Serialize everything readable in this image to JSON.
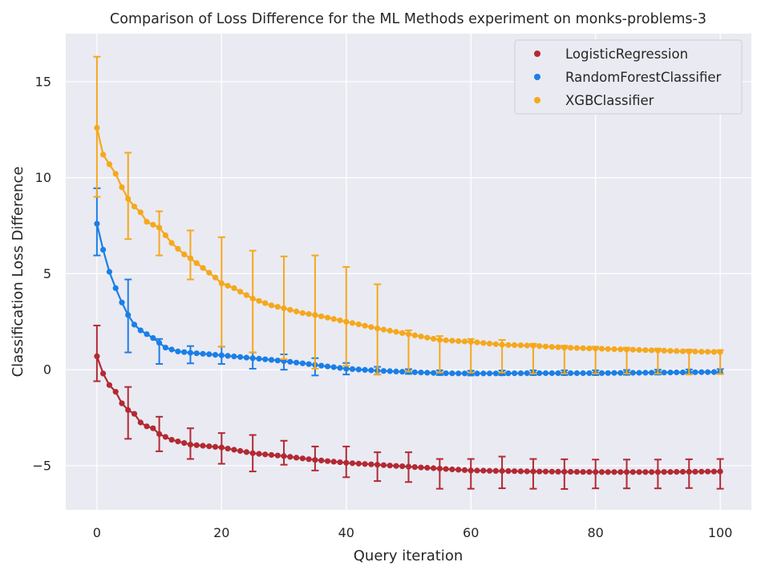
{
  "chart_data": {
    "type": "line",
    "title": "Comparison of Loss Difference for the ML Methods experiment on monks-problems-3",
    "xlabel": "Query iteration",
    "ylabel": "Classification Loss Difference",
    "xlim": [
      -5,
      105
    ],
    "ylim": [
      -7.3,
      17.5
    ],
    "xticks": [
      0,
      20,
      40,
      60,
      80,
      100
    ],
    "xtick_labels": [
      "0",
      "20",
      "40",
      "60",
      "80",
      "100"
    ],
    "yticks": [
      -5,
      0,
      5,
      10,
      15
    ],
    "ytick_labels": [
      "−5",
      "0",
      "5",
      "10",
      "15"
    ],
    "grid": true,
    "legend_position": "top-right",
    "error_bar_every": 5,
    "series": [
      {
        "name": "LogisticRegression",
        "color": "#b22a33",
        "anchors": [
          [
            0,
            0.7
          ],
          [
            1,
            -0.2
          ],
          [
            2,
            -0.8
          ],
          [
            3,
            -1.15
          ],
          [
            4,
            -1.75
          ],
          [
            5,
            -2.1
          ],
          [
            6,
            -2.3
          ],
          [
            7,
            -2.75
          ],
          [
            8,
            -2.95
          ],
          [
            9,
            -3.05
          ],
          [
            10,
            -3.35
          ],
          [
            12,
            -3.65
          ],
          [
            15,
            -3.9
          ],
          [
            20,
            -4.05
          ],
          [
            25,
            -4.35
          ],
          [
            30,
            -4.5
          ],
          [
            35,
            -4.7
          ],
          [
            40,
            -4.85
          ],
          [
            45,
            -4.95
          ],
          [
            50,
            -5.05
          ],
          [
            55,
            -5.15
          ],
          [
            60,
            -5.25
          ],
          [
            70,
            -5.3
          ],
          [
            80,
            -5.33
          ],
          [
            90,
            -5.33
          ],
          [
            100,
            -5.3
          ]
        ],
        "err_low": [
          [
            0,
            1.3
          ],
          [
            5,
            1.5
          ],
          [
            10,
            0.9
          ],
          [
            15,
            0.75
          ],
          [
            20,
            0.85
          ],
          [
            25,
            0.95
          ],
          [
            30,
            0.45
          ],
          [
            35,
            0.55
          ],
          [
            40,
            0.75
          ],
          [
            45,
            0.85
          ],
          [
            50,
            0.8
          ],
          [
            55,
            1.05
          ],
          [
            60,
            0.95
          ],
          [
            65,
            0.9
          ],
          [
            70,
            0.9
          ],
          [
            75,
            0.9
          ],
          [
            80,
            0.85
          ],
          [
            85,
            0.85
          ],
          [
            90,
            0.85
          ],
          [
            95,
            0.85
          ],
          [
            100,
            0.9
          ]
        ],
        "err_high": [
          [
            0,
            1.6
          ],
          [
            5,
            1.2
          ],
          [
            10,
            0.9
          ],
          [
            15,
            0.85
          ],
          [
            20,
            0.75
          ],
          [
            25,
            0.95
          ],
          [
            30,
            0.8
          ],
          [
            35,
            0.7
          ],
          [
            40,
            0.85
          ],
          [
            45,
            0.65
          ],
          [
            50,
            0.75
          ],
          [
            55,
            0.5
          ],
          [
            60,
            0.6
          ],
          [
            65,
            0.75
          ],
          [
            70,
            0.65
          ],
          [
            75,
            0.65
          ],
          [
            80,
            0.65
          ],
          [
            85,
            0.65
          ],
          [
            90,
            0.65
          ],
          [
            95,
            0.65
          ],
          [
            100,
            0.65
          ]
        ]
      },
      {
        "name": "RandomForestClassifier",
        "color": "#1a7fe6",
        "anchors": [
          [
            0,
            7.6
          ],
          [
            1,
            6.25
          ],
          [
            2,
            5.1
          ],
          [
            3,
            4.25
          ],
          [
            4,
            3.5
          ],
          [
            5,
            2.85
          ],
          [
            6,
            2.35
          ],
          [
            7,
            2.05
          ],
          [
            8,
            1.85
          ],
          [
            9,
            1.65
          ],
          [
            10,
            1.4
          ],
          [
            11,
            1.15
          ],
          [
            13,
            0.95
          ],
          [
            15,
            0.88
          ],
          [
            20,
            0.75
          ],
          [
            25,
            0.6
          ],
          [
            30,
            0.45
          ],
          [
            35,
            0.25
          ],
          [
            40,
            0.05
          ],
          [
            45,
            -0.05
          ],
          [
            50,
            -0.12
          ],
          [
            55,
            -0.18
          ],
          [
            60,
            -0.2
          ],
          [
            70,
            -0.18
          ],
          [
            80,
            -0.18
          ],
          [
            90,
            -0.15
          ],
          [
            100,
            -0.12
          ]
        ],
        "err_low": [
          [
            0,
            1.65
          ],
          [
            5,
            1.95
          ],
          [
            10,
            1.1
          ],
          [
            15,
            0.55
          ],
          [
            20,
            0.45
          ],
          [
            25,
            0.55
          ],
          [
            30,
            0.45
          ],
          [
            35,
            0.55
          ],
          [
            40,
            0.3
          ],
          [
            45,
            0.2
          ],
          [
            50,
            0.1
          ],
          [
            55,
            0.1
          ],
          [
            60,
            0.1
          ],
          [
            65,
            0.1
          ],
          [
            70,
            0.1
          ],
          [
            75,
            0.1
          ],
          [
            80,
            0.1
          ],
          [
            85,
            0.1
          ],
          [
            90,
            0.1
          ],
          [
            95,
            0.1
          ],
          [
            100,
            0.1
          ]
        ],
        "err_high": [
          [
            0,
            1.85
          ],
          [
            5,
            1.85
          ],
          [
            10,
            0.2
          ],
          [
            15,
            0.35
          ],
          [
            20,
            0.45
          ],
          [
            25,
            0.3
          ],
          [
            30,
            0.35
          ],
          [
            35,
            0.35
          ],
          [
            40,
            0.3
          ],
          [
            45,
            0.2
          ],
          [
            50,
            0.15
          ],
          [
            55,
            0.15
          ],
          [
            60,
            0.15
          ],
          [
            65,
            0.15
          ],
          [
            70,
            0.15
          ],
          [
            75,
            0.15
          ],
          [
            80,
            0.15
          ],
          [
            85,
            0.15
          ],
          [
            90,
            0.15
          ],
          [
            95,
            0.15
          ],
          [
            100,
            0.15
          ]
        ]
      },
      {
        "name": "XGBClassifier",
        "color": "#f5a81c",
        "anchors": [
          [
            0,
            12.6
          ],
          [
            1,
            11.2
          ],
          [
            2,
            10.7
          ],
          [
            3,
            10.2
          ],
          [
            4,
            9.5
          ],
          [
            5,
            8.9
          ],
          [
            6,
            8.5
          ],
          [
            7,
            8.2
          ],
          [
            8,
            7.7
          ],
          [
            9,
            7.55
          ],
          [
            10,
            7.4
          ],
          [
            11,
            7.0
          ],
          [
            12,
            6.6
          ],
          [
            13,
            6.3
          ],
          [
            14,
            6.0
          ],
          [
            15,
            5.8
          ],
          [
            16,
            5.55
          ],
          [
            17,
            5.3
          ],
          [
            18,
            5.05
          ],
          [
            19,
            4.8
          ],
          [
            20,
            4.5
          ],
          [
            22,
            4.25
          ],
          [
            25,
            3.7
          ],
          [
            28,
            3.35
          ],
          [
            30,
            3.2
          ],
          [
            33,
            2.95
          ],
          [
            35,
            2.85
          ],
          [
            40,
            2.5
          ],
          [
            45,
            2.15
          ],
          [
            50,
            1.85
          ],
          [
            55,
            1.55
          ],
          [
            60,
            1.45
          ],
          [
            65,
            1.3
          ],
          [
            70,
            1.25
          ],
          [
            75,
            1.15
          ],
          [
            80,
            1.1
          ],
          [
            85,
            1.05
          ],
          [
            90,
            1.0
          ],
          [
            95,
            0.95
          ],
          [
            100,
            0.92
          ]
        ],
        "err_low": [
          [
            0,
            3.6
          ],
          [
            5,
            2.1
          ],
          [
            10,
            1.45
          ],
          [
            15,
            1.1
          ],
          [
            20,
            3.3
          ],
          [
            25,
            2.8
          ],
          [
            30,
            2.65
          ],
          [
            35,
            2.8
          ],
          [
            40,
            2.3
          ],
          [
            45,
            2.4
          ],
          [
            50,
            1.95
          ],
          [
            55,
            1.7
          ],
          [
            60,
            1.6
          ],
          [
            65,
            1.45
          ],
          [
            70,
            1.45
          ],
          [
            75,
            1.35
          ],
          [
            80,
            1.3
          ],
          [
            85,
            1.25
          ],
          [
            90,
            1.2
          ],
          [
            95,
            1.2
          ],
          [
            100,
            1.15
          ]
        ],
        "err_high": [
          [
            0,
            3.7
          ],
          [
            5,
            2.4
          ],
          [
            10,
            0.85
          ],
          [
            15,
            1.45
          ],
          [
            20,
            2.4
          ],
          [
            25,
            2.5
          ],
          [
            30,
            2.7
          ],
          [
            35,
            3.1
          ],
          [
            40,
            2.85
          ],
          [
            45,
            2.3
          ],
          [
            50,
            0.2
          ],
          [
            55,
            0.2
          ],
          [
            60,
            0.15
          ],
          [
            65,
            0.25
          ],
          [
            70,
            0.1
          ],
          [
            75,
            0.1
          ],
          [
            80,
            0.1
          ],
          [
            85,
            0.1
          ],
          [
            90,
            0.1
          ],
          [
            95,
            0.1
          ],
          [
            100,
            0.1
          ]
        ]
      }
    ]
  }
}
